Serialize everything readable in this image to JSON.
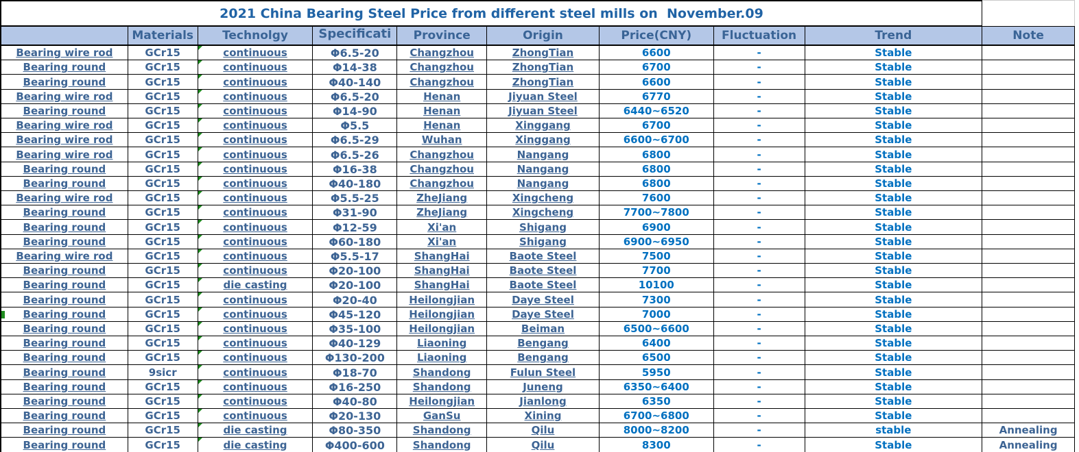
{
  "title": "2021 China Bearing Steel Price from different steel mills on  November.09",
  "headers": [
    "",
    "Materials",
    "Technolgy",
    "Specificati",
    "Province",
    "Origin",
    "Price(CNY)",
    "Fluctuation",
    "Trend",
    "Note"
  ],
  "rows": [
    [
      "Bearing wire rod",
      "GCr15",
      "continuous",
      "Φ6.5-20",
      "Changzhou",
      "ZhongTian",
      "6600",
      "-",
      "Stable",
      ""
    ],
    [
      "Bearing round",
      "GCr15",
      "continuous",
      "Φ14-38",
      "Changzhou",
      "ZhongTian",
      "6700",
      "-",
      "Stable",
      ""
    ],
    [
      "Bearing round",
      "GCr15",
      "continuous",
      "Φ40-140",
      "Changzhou",
      "ZhongTian",
      "6600",
      "-",
      "Stable",
      ""
    ],
    [
      "Bearing wire rod",
      "GCr15",
      "continuous",
      "Φ6.5-20",
      "Henan",
      "Jiyuan Steel",
      "6770",
      "-",
      "Stable",
      ""
    ],
    [
      "Bearing round",
      "GCr15",
      "continuous",
      "Φ14-90",
      "Henan",
      "Jiyuan Steel",
      "6440~6520",
      "-",
      "Stable",
      ""
    ],
    [
      "Bearing wire rod",
      "GCr15",
      "continuous",
      "Φ5.5",
      "Henan",
      "Xinggang",
      "6700",
      "-",
      "Stable",
      ""
    ],
    [
      "Bearing wire rod",
      "GCr15",
      "continuous",
      "Φ6.5-29",
      "Wuhan",
      "Xinggang",
      "6600~6700",
      "-",
      "Stable",
      ""
    ],
    [
      "Bearing wire rod",
      "GCr15",
      "continuous",
      "Φ6.5-26",
      "Changzhou",
      "Nangang",
      "6800",
      "-",
      "Stable",
      ""
    ],
    [
      "Bearing round",
      "GCr15",
      "continuous",
      "Φ16-38",
      "Changzhou",
      "Nangang",
      "6800",
      "-",
      "Stable",
      ""
    ],
    [
      "Bearing round",
      "GCr15",
      "continuous",
      "Φ40-180",
      "Changzhou",
      "Nangang",
      "6800",
      "-",
      "Stable",
      ""
    ],
    [
      "Bearing wire rod",
      "GCr15",
      "continuous",
      "Φ5.5-25",
      "ZheJiang",
      "Xingcheng",
      "7600",
      "-",
      "Stable",
      ""
    ],
    [
      "Bearing round",
      "GCr15",
      "continuous",
      "Φ31-90",
      "ZheJiang",
      "Xingcheng",
      "7700~7800",
      "-",
      "Stable",
      ""
    ],
    [
      "Bearing round",
      "GCr15",
      "continuous",
      "Φ12-59",
      "Xi'an",
      "Shigang",
      "6900",
      "-",
      "Stable",
      ""
    ],
    [
      "Bearing round",
      "GCr15",
      "continuous",
      "Φ60-180",
      "Xi'an",
      "Shigang",
      "6900~6950",
      "-",
      "Stable",
      ""
    ],
    [
      "Bearing wire rod",
      "GCr15",
      "continuous",
      "Φ5.5-17",
      "ShangHai",
      "Baote Steel",
      "7500",
      "-",
      "Stable",
      ""
    ],
    [
      "Bearing round",
      "GCr15",
      "continuous",
      "Φ20-100",
      "ShangHai",
      "Baote Steel",
      "7700",
      "-",
      "Stable",
      ""
    ],
    [
      "Bearing round",
      "GCr15",
      "die casting",
      "Φ20-100",
      "ShangHai",
      "Baote Steel",
      "10100",
      "-",
      "Stable",
      ""
    ],
    [
      "Bearing round",
      "GCr15",
      "continuous",
      "Φ20-40",
      "Heilongjian",
      "Daye  Steel",
      "7300",
      "-",
      "Stable",
      ""
    ],
    [
      "Bearing round",
      "GCr15",
      "continuous",
      "Φ45-120",
      "Heilongjian",
      "Daye  Steel",
      "7000",
      "-",
      "Stable",
      ""
    ],
    [
      "Bearing round",
      "GCr15",
      "continuous",
      "Φ35-100",
      "Heilongjian",
      "Beiman",
      "6500~6600",
      "-",
      "Stable",
      ""
    ],
    [
      "Bearing round",
      "GCr15",
      "continuous",
      "Φ40-129",
      "Liaoning",
      "Bengang",
      "6400",
      "-",
      "Stable",
      ""
    ],
    [
      "Bearing round",
      "GCr15",
      "continuous",
      "Φ130-200",
      "Liaoning",
      "Bengang",
      "6500",
      "-",
      "Stable",
      ""
    ],
    [
      "Bearing round",
      "9sicr",
      "continuous",
      "Φ18-70",
      "Shandong",
      "Fulun Steel",
      "5950",
      "-",
      "Stable",
      ""
    ],
    [
      "Bearing round",
      "GCr15",
      "continuous",
      "Φ16-250",
      "Shandong",
      "Juneng",
      "6350~6400",
      "-",
      "Stable",
      ""
    ],
    [
      "Bearing round",
      "GCr15",
      "continuous",
      "Φ40-80",
      "Heilongjian",
      "Jianlong",
      "6350",
      "-",
      "Stable",
      ""
    ],
    [
      "Bearing round",
      "GCr15",
      "continuous",
      "Φ20-130",
      "GanSu",
      "Xining",
      "6700~6800",
      "-",
      "Stable",
      ""
    ],
    [
      "Bearing round",
      "GCr15",
      "die casting",
      "Φ80-350",
      "Shandong",
      "Qilu",
      "8000~8200",
      "-",
      "stable",
      "Annealing"
    ],
    [
      "Bearing round",
      "GCr15",
      "die casting",
      "Φ400-600",
      "Shandong",
      "Qilu",
      "8300",
      "-",
      "Stable",
      "Annealing"
    ]
  ],
  "flags": {
    "error_indicator_column": 2,
    "green_left_marker_row": 18
  },
  "colors": {
    "header_bg": "#b4c7e7",
    "header_text": "#3a6496",
    "title_text": "#2063a5",
    "data_slate": "#3d6494",
    "data_bright": "#0070c0",
    "green_indicator": "#1e8c1e",
    "border": "#000000"
  }
}
